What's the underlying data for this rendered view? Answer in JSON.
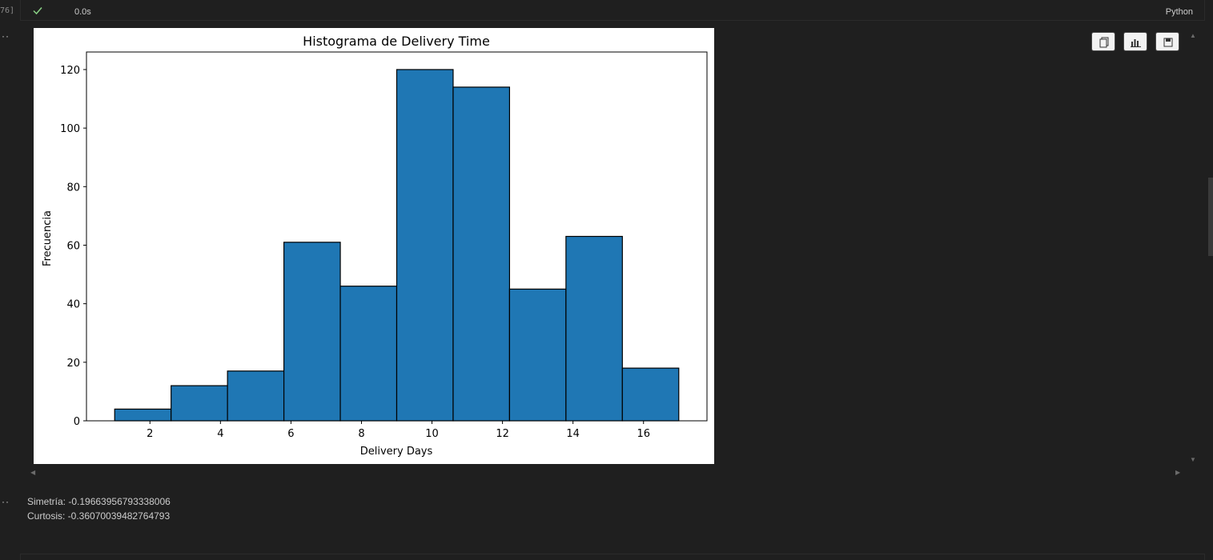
{
  "cell": {
    "execution_count": "76]",
    "status_icon": "check-icon",
    "duration": "0.0s",
    "language": "Python"
  },
  "toolbar": {
    "icons": [
      "copy-icon",
      "chart-icon",
      "save-icon"
    ]
  },
  "chart_data": {
    "type": "bar",
    "title": "Histograma de Delivery Time",
    "xlabel": "Delivery Days",
    "ylabel": "Frecuencia",
    "bin_edges": [
      1.0,
      2.6,
      4.2,
      5.8,
      7.4,
      9.0,
      10.6,
      12.2,
      13.8,
      15.4,
      17.0
    ],
    "values": [
      4,
      12,
      17,
      61,
      46,
      120,
      114,
      45,
      63,
      18
    ],
    "xticks": [
      2,
      4,
      6,
      8,
      10,
      12,
      14,
      16
    ],
    "yticks": [
      0,
      20,
      40,
      60,
      80,
      100,
      120
    ],
    "xlim": [
      0.2,
      17.8
    ],
    "ylim": [
      0,
      126
    ],
    "bar_color": "#1f77b4",
    "edge_color": "#000000",
    "grid": false
  },
  "output_text": {
    "line1": "Simetría: -0.19663956793338006",
    "line2": "Curtosis: -0.36070039482764793"
  }
}
